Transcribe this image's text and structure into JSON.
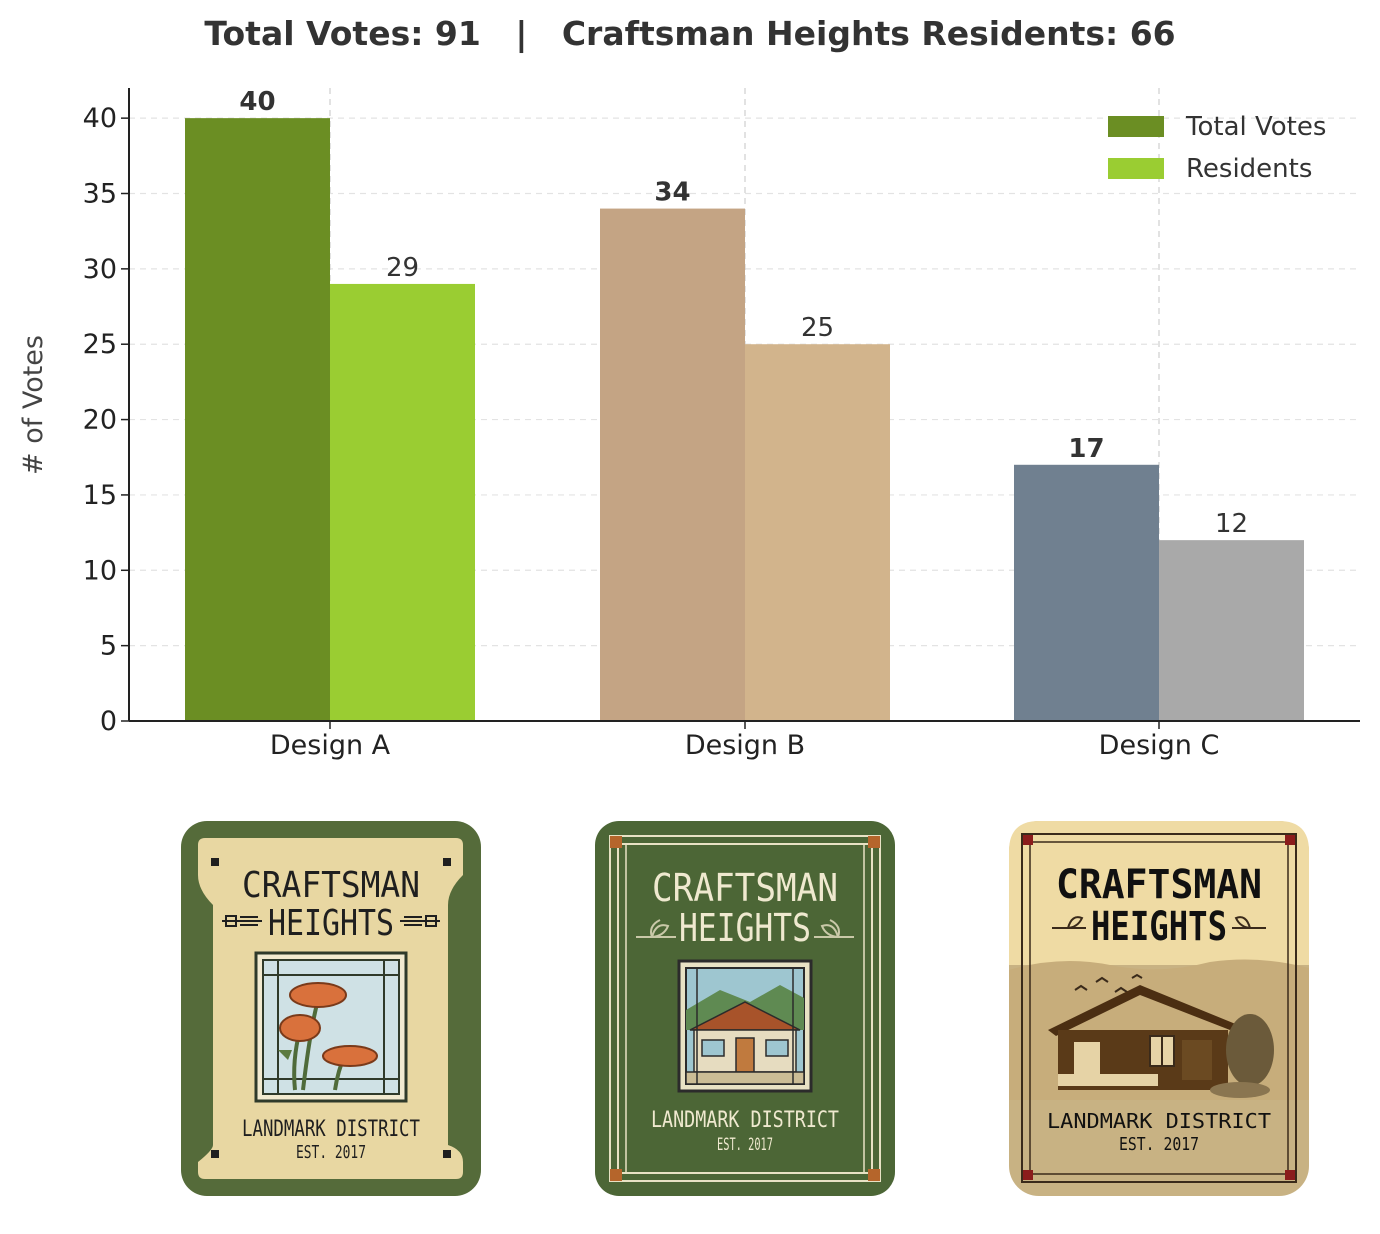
{
  "header": {
    "total_label": "Total Votes: 91",
    "separator": "|",
    "residents_label": "Craftsman Heights Residents: 66"
  },
  "chart_data": {
    "type": "bar",
    "categories": [
      "Design A",
      "Design B",
      "Design C"
    ],
    "series": [
      {
        "name": "Total Votes",
        "values": [
          40,
          34,
          17
        ]
      },
      {
        "name": "Residents",
        "values": [
          29,
          25,
          12
        ]
      }
    ],
    "bar_colors": {
      "Total Votes": [
        "#6b8e23",
        "#c4a484",
        "#708090"
      ],
      "Residents": [
        "#9acd32",
        "#d2b48c",
        "#a9a9a9"
      ]
    },
    "legend_colors": [
      "#6b8e23",
      "#9acd32"
    ],
    "xlabel": "",
    "ylabel": "# of Votes",
    "ylim": [
      0,
      42
    ],
    "yticks": [
      0,
      5,
      10,
      15,
      20,
      25,
      30,
      35,
      40
    ],
    "grid": true,
    "legend": "top-right"
  },
  "badges": [
    {
      "design": "Design A",
      "line1": "CRAFTSMAN",
      "line2": "HEIGHTS",
      "line3": "LANDMARK DISTRICT",
      "line4": "EST. 2017",
      "motif": "poppy-window"
    },
    {
      "design": "Design B",
      "line1": "CRAFTSMAN",
      "line2": "HEIGHTS",
      "line3": "LANDMARK DISTRICT",
      "line4": "EST. 2017",
      "motif": "bungalow-window"
    },
    {
      "design": "Design C",
      "line1": "CRAFTSMAN",
      "line2": "HEIGHTS",
      "line3": "LANDMARK DISTRICT",
      "line4": "EST. 2017",
      "motif": "bungalow-photo"
    }
  ]
}
